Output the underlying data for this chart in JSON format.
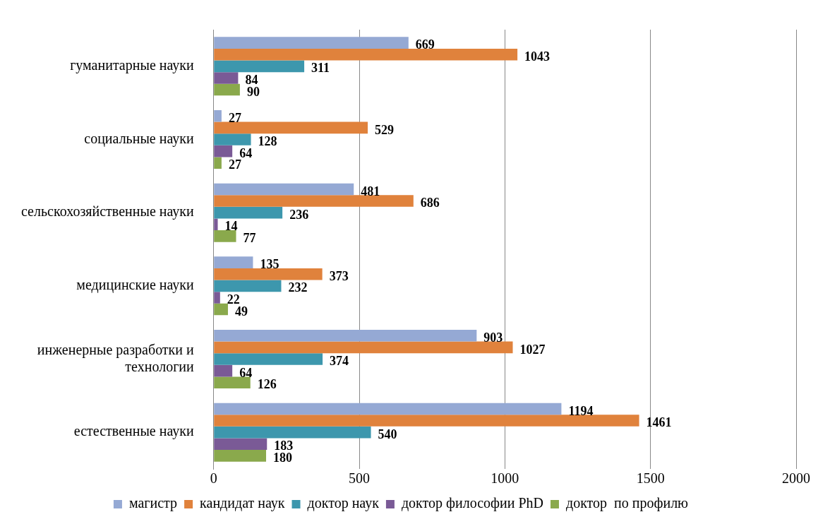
{
  "chart_data": {
    "type": "bar",
    "orientation": "horizontal",
    "categories": [
      "гуманитарные науки",
      "социальные науки",
      "сельскохозяйственные науки",
      "медицинские науки",
      "инженерные разработки и технологии",
      "естественные науки"
    ],
    "series": [
      {
        "name": "магистр",
        "color": "#95a9d4",
        "values": [
          669,
          27,
          481,
          135,
          903,
          1194
        ]
      },
      {
        "name": "кандидат наук",
        "color": "#e0823c",
        "values": [
          1043,
          529,
          686,
          373,
          1027,
          1461
        ]
      },
      {
        "name": "доктор наук",
        "color": "#3d97ad",
        "values": [
          311,
          128,
          236,
          232,
          374,
          540
        ]
      },
      {
        "name": "доктор философии PhD",
        "color": "#7a5a96",
        "values": [
          84,
          64,
          14,
          22,
          64,
          183
        ]
      },
      {
        "name": "доктор  по профилю",
        "color": "#8aa94c",
        "values": [
          90,
          27,
          77,
          49,
          126,
          180
        ]
      }
    ],
    "xlim": [
      0,
      2000
    ],
    "xticks": [
      0,
      500,
      1000,
      1500,
      2000
    ],
    "grid": "x",
    "legend": "bottom",
    "data_labels": true
  }
}
